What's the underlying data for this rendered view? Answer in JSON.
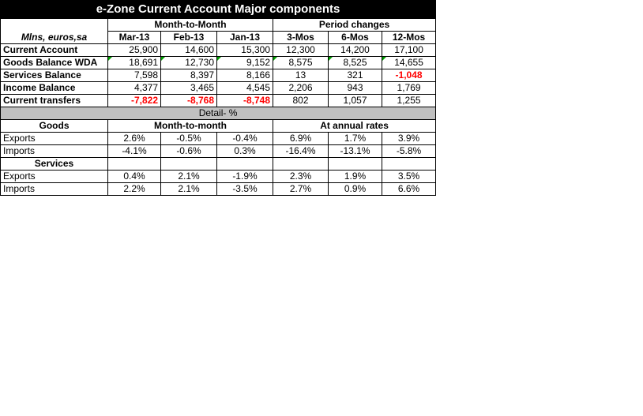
{
  "title": "e-Zone Current Account Major components",
  "groups": {
    "month": "Month-to-Month",
    "period": "Period changes"
  },
  "header": {
    "units": "Mlns, euros,sa",
    "cols": [
      "Mar-13",
      "Feb-13",
      "Jan-13",
      "3-Mos",
      "6-Mos",
      "12-Mos"
    ]
  },
  "rows": [
    {
      "label": "Current Account",
      "values": [
        "25,900",
        "14,600",
        "15,300",
        "12,300",
        "14,200",
        "17,100"
      ]
    },
    {
      "label": "Goods Balance WDA",
      "values": [
        "18,691",
        "12,730",
        "9,152",
        "8,575",
        "8,525",
        "14,655"
      ]
    },
    {
      "label": "Services Balance",
      "values": [
        "7,598",
        "8,397",
        "8,166",
        "13",
        "321",
        "-1,048"
      ]
    },
    {
      "label": "Income Balance",
      "values": [
        "4,377",
        "3,465",
        "4,545",
        "2,206",
        "943",
        "1,769"
      ]
    },
    {
      "label": "Current transfers",
      "values": [
        "-7,822",
        "-8,768",
        "-8,748",
        "802",
        "1,057",
        "1,255"
      ]
    }
  ],
  "detail": {
    "band": "Detail- %",
    "goods": {
      "label": "Goods",
      "mm": "Month-to-month",
      "annual": "At annual rates",
      "exports": {
        "label": "Exports",
        "values": [
          "2.6%",
          "-0.5%",
          "-0.4%",
          "6.9%",
          "1.7%",
          "3.9%"
        ]
      },
      "imports": {
        "label": "Imports",
        "values": [
          "-4.1%",
          "-0.6%",
          "0.3%",
          "-16.4%",
          "-13.1%",
          "-5.8%"
        ]
      }
    },
    "services": {
      "label": "Services",
      "exports": {
        "label": "Exports",
        "values": [
          "0.4%",
          "2.1%",
          "-1.9%",
          "2.3%",
          "1.9%",
          "3.5%"
        ]
      },
      "imports": {
        "label": "Imports",
        "values": [
          "2.2%",
          "2.1%",
          "-3.5%",
          "2.7%",
          "0.9%",
          "6.6%"
        ]
      }
    }
  }
}
